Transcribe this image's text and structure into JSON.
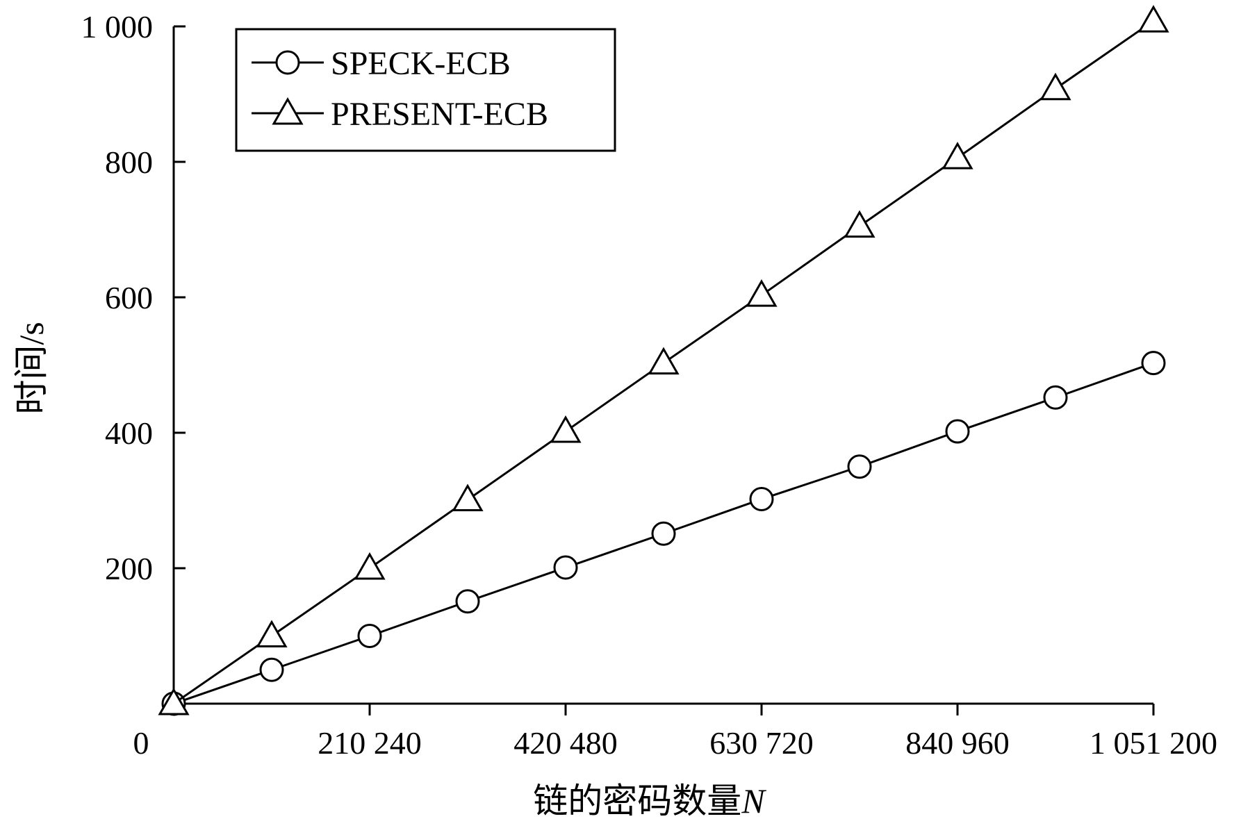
{
  "chart_data": {
    "type": "line",
    "title": "",
    "xlabel": "链的密码数量",
    "xlabel_var": "N",
    "ylabel": "时间/s",
    "xlim": [
      0,
      1051200
    ],
    "ylim": [
      0,
      1000
    ],
    "x_ticks": [
      {
        "value": 0,
        "label": "0"
      },
      {
        "value": 210240,
        "label": "210 240"
      },
      {
        "value": 420480,
        "label": "420 480"
      },
      {
        "value": 630720,
        "label": "630 720"
      },
      {
        "value": 840960,
        "label": "840 960"
      },
      {
        "value": 1051200,
        "label": "1 051 200"
      }
    ],
    "y_ticks": [
      {
        "value": 200,
        "label": "200"
      },
      {
        "value": 400,
        "label": "400"
      },
      {
        "value": 600,
        "label": "600"
      },
      {
        "value": 800,
        "label": "800"
      },
      {
        "value": 1000,
        "label": "1 000"
      }
    ],
    "legend_position": "top-left",
    "grid": false,
    "x": [
      0,
      105120,
      210240,
      315360,
      420480,
      525600,
      630720,
      735840,
      840960,
      946080,
      1051200
    ],
    "series": [
      {
        "name": "SPECK-ECB",
        "marker": "circle",
        "values": [
          0,
          50,
          100,
          151,
          201,
          251,
          302,
          350,
          402,
          452,
          503
        ]
      },
      {
        "name": "PRESENT-ECB",
        "marker": "triangle",
        "values": [
          0,
          100,
          200,
          301,
          402,
          503,
          603,
          705,
          806,
          908,
          1008
        ]
      }
    ]
  }
}
